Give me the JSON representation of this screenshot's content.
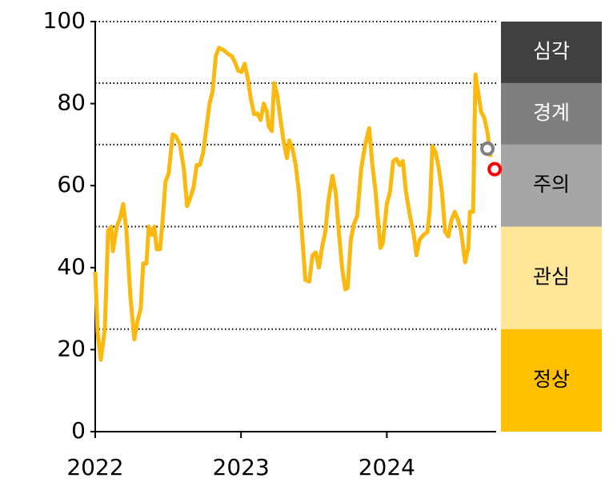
{
  "chart_data": {
    "type": "line",
    "x": [
      2022.0,
      2022.016,
      2022.038,
      2022.066,
      2022.088,
      2022.11,
      2022.121,
      2022.148,
      2022.17,
      2022.192,
      2022.214,
      2022.241,
      2022.268,
      2022.29,
      2022.312,
      2022.329,
      2022.351,
      2022.367,
      2022.389,
      2022.405,
      2022.422,
      2022.444,
      2022.46,
      2022.482,
      2022.504,
      2022.531,
      2022.553,
      2022.581,
      2022.608,
      2022.63,
      2022.652,
      2022.674,
      2022.696,
      2022.718,
      2022.74,
      2022.762,
      2022.784,
      2022.805,
      2022.827,
      2022.849,
      2022.882,
      2022.915,
      2022.937,
      2022.959,
      2022.981,
      2023.003,
      2023.025,
      2023.047,
      2023.068,
      2023.09,
      2023.112,
      2023.134,
      2023.156,
      2023.178,
      2023.189,
      2023.211,
      2023.227,
      2023.249,
      2023.271,
      2023.293,
      2023.315,
      2023.331,
      2023.353,
      2023.375,
      2023.397,
      2023.419,
      2023.441,
      2023.468,
      2023.49,
      2023.512,
      2023.534,
      2023.556,
      2023.578,
      2023.6,
      2023.627,
      2023.649,
      2023.671,
      2023.693,
      2023.715,
      2023.731,
      2023.753,
      2023.775,
      2023.797,
      2023.824,
      2023.852,
      2023.879,
      2023.901,
      2023.923,
      2023.956,
      2023.972,
      2024.0,
      2024.022,
      2024.044,
      2024.066,
      2024.088,
      2024.11,
      2024.131,
      2024.159,
      2024.186,
      2024.203,
      2024.225,
      2024.252,
      2024.279,
      2024.296,
      2024.312,
      2024.334,
      2024.356,
      2024.378,
      2024.4,
      2024.422,
      2024.444,
      2024.466,
      2024.488,
      2024.51,
      2024.537,
      2024.559,
      2024.57,
      2024.592,
      2024.608,
      2024.63,
      2024.646,
      2024.668,
      2024.69,
      2024.712
    ],
    "series": [
      {
        "color": "#fbb80f",
        "values": [
          39,
          24.4,
          17.5,
          25,
          49,
          50,
          44,
          50,
          52,
          55.5,
          49,
          33,
          22.5,
          27,
          30,
          41,
          41,
          50,
          48,
          50,
          44.5,
          44.5,
          50.5,
          61,
          63,
          72.5,
          72,
          70,
          64,
          55,
          57,
          59.5,
          65,
          65,
          68,
          74,
          80,
          83,
          91.6,
          93.6,
          93,
          92,
          91.6,
          90,
          88,
          87.7,
          89.7,
          86,
          81,
          77.4,
          77.6,
          76,
          80,
          78,
          74.5,
          73.3,
          85,
          82,
          76,
          70.6,
          66.7,
          71,
          69,
          65,
          58.5,
          48,
          37,
          36.6,
          43,
          43.7,
          40,
          45,
          48.7,
          56.5,
          62.4,
          58.5,
          48.7,
          40,
          34.7,
          35,
          46.8,
          50.7,
          52.6,
          64,
          70,
          74,
          65,
          58.5,
          44.8,
          45.8,
          55.5,
          58.5,
          66,
          66.5,
          65,
          66,
          58.5,
          52.6,
          47.8,
          43,
          46.8,
          48,
          48.7,
          54.6,
          69.6,
          68.2,
          64.3,
          58.5,
          48.7,
          47.6,
          51.7,
          53.6,
          51.7,
          48.7,
          41.3,
          44.8,
          53.6,
          53.6,
          87.1,
          82,
          78,
          76.6,
          73,
          67
        ]
      }
    ],
    "markers": [
      {
        "x": 2024.69,
        "value": 69,
        "color": "#808080"
      },
      {
        "x": 2024.74,
        "value": 64,
        "color": "#ff0000"
      }
    ],
    "bands": [
      {
        "label": "심각",
        "from": 85,
        "to": 100,
        "color": "#404040",
        "text_color": "#ffffff"
      },
      {
        "label": "경계",
        "from": 70,
        "to": 85,
        "color": "#7f7f7f",
        "text_color": "#ffffff"
      },
      {
        "label": "주의",
        "from": 50,
        "to": 70,
        "color": "#a6a6a6",
        "text_color": "#000000"
      },
      {
        "label": "관심",
        "from": 25,
        "to": 50,
        "color": "#ffe699",
        "text_color": "#000000"
      },
      {
        "label": "정상",
        "from": 0,
        "to": 25,
        "color": "#ffc000",
        "text_color": "#000000"
      }
    ],
    "xlim": [
      2022,
      2024.75
    ],
    "xticks": [
      2022,
      2023,
      2024
    ],
    "ylim": [
      0,
      100
    ],
    "yticks": [
      0,
      20,
      40,
      60,
      80,
      100
    ]
  }
}
